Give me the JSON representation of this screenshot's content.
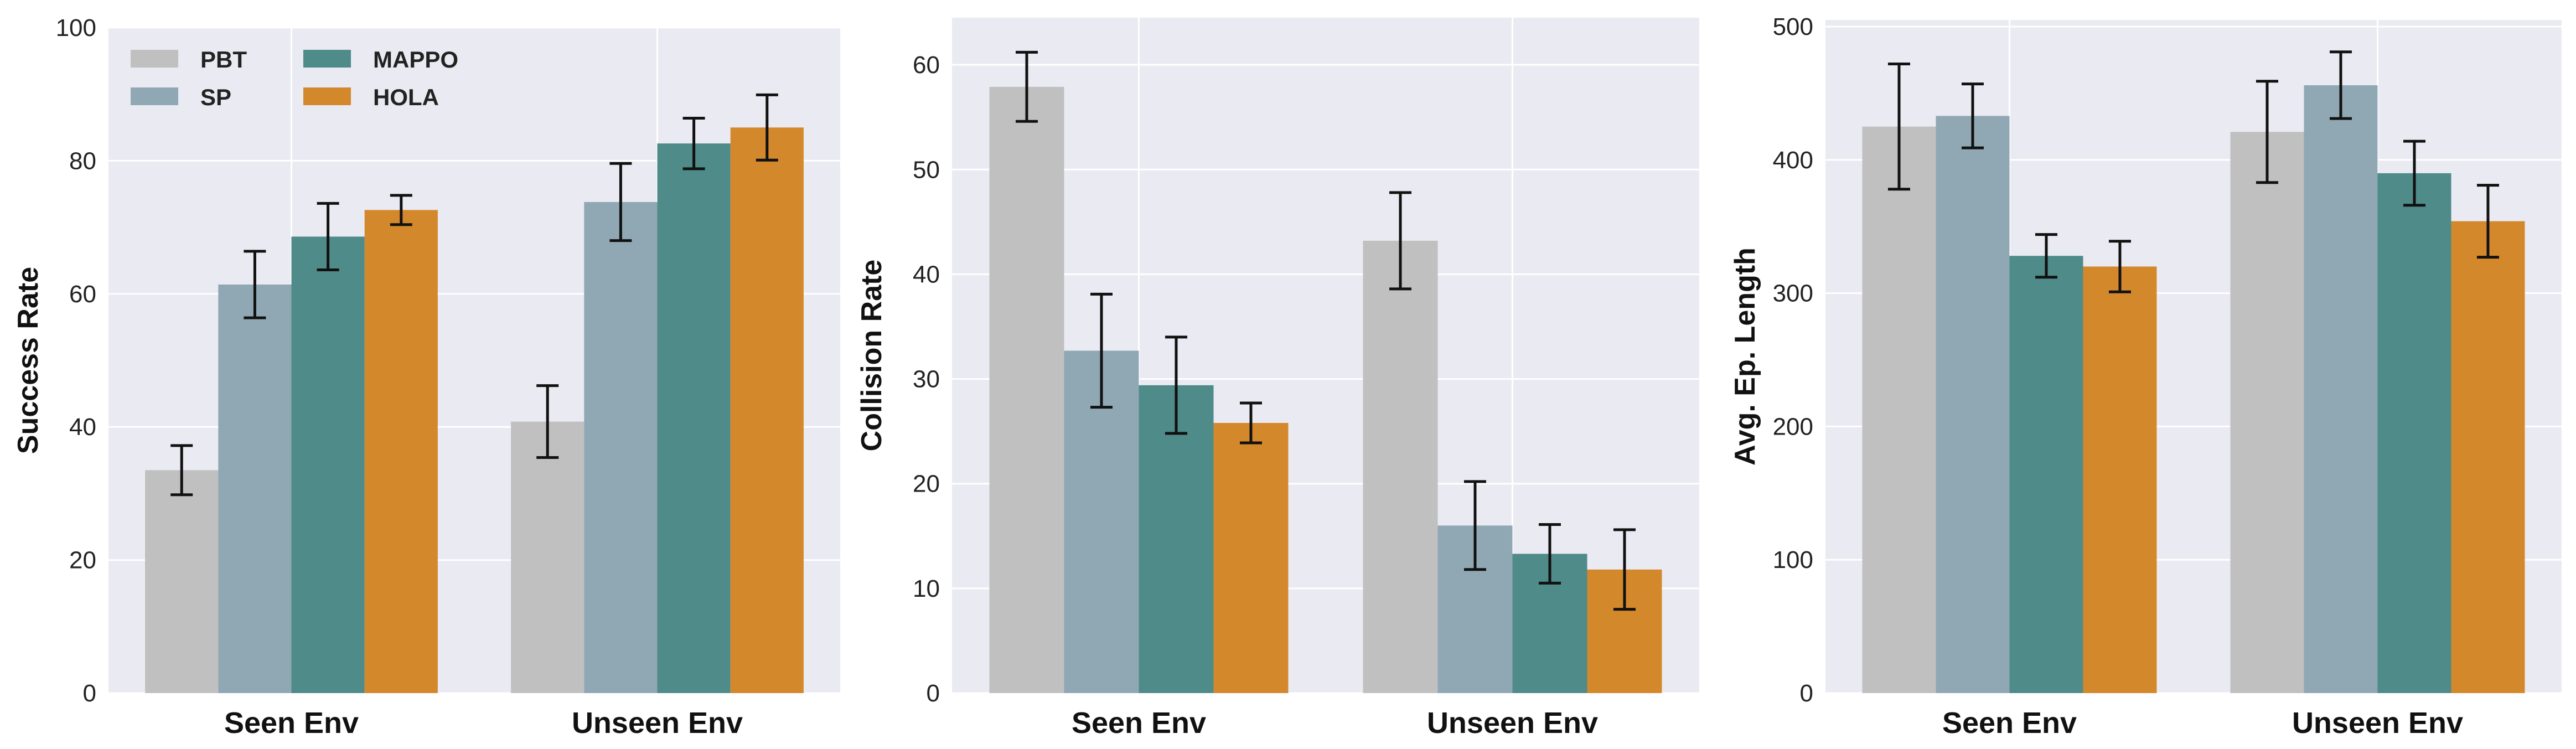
{
  "chart_data": [
    {
      "type": "bar",
      "ylabel": "Success Rate",
      "categories": [
        "Seen Env",
        "Unseen Env"
      ],
      "ylim": [
        0,
        100
      ],
      "yticks": [
        0,
        20,
        40,
        60,
        80,
        100
      ],
      "grid": true,
      "legend": "top-left",
      "series": [
        {
          "name": "PBT",
          "color": "#c0c0c0",
          "values": [
            33.5,
            40.8
          ],
          "errors": [
            3.7,
            5.4
          ]
        },
        {
          "name": "SP",
          "color": "#90a8b4",
          "values": [
            61.4,
            73.8
          ],
          "errors": [
            5.0,
            5.8
          ]
        },
        {
          "name": "MAPPO",
          "color": "#4e8b89",
          "values": [
            68.6,
            82.6
          ],
          "errors": [
            5.0,
            3.8
          ]
        },
        {
          "name": "HOLA",
          "color": "#d4882c",
          "values": [
            72.6,
            85.0
          ],
          "errors": [
            2.2,
            4.9
          ]
        }
      ]
    },
    {
      "type": "bar",
      "ylabel": "Collision Rate",
      "categories": [
        "Seen Env",
        "Unseen Env"
      ],
      "ylim": [
        0,
        64.5
      ],
      "yticks": [
        0,
        10,
        20,
        30,
        40,
        50,
        60
      ],
      "grid": true,
      "series": [
        {
          "name": "PBT",
          "color": "#c0c0c0",
          "values": [
            57.9,
            43.2
          ],
          "errors": [
            3.3,
            4.6
          ]
        },
        {
          "name": "SP",
          "color": "#90a8b4",
          "values": [
            32.7,
            16.0
          ],
          "errors": [
            5.4,
            4.2
          ]
        },
        {
          "name": "MAPPO",
          "color": "#4e8b89",
          "values": [
            29.4,
            13.3
          ],
          "errors": [
            4.6,
            2.8
          ]
        },
        {
          "name": "HOLA",
          "color": "#d4882c",
          "values": [
            25.8,
            11.8
          ],
          "errors": [
            1.9,
            3.8
          ]
        }
      ]
    },
    {
      "type": "bar",
      "ylabel": "Avg. Ep. Length",
      "categories": [
        "Seen Env",
        "Unseen Env"
      ],
      "ylim": [
        0,
        505
      ],
      "yticks": [
        0,
        100,
        200,
        300,
        400,
        500
      ],
      "grid": true,
      "series": [
        {
          "name": "PBT",
          "color": "#c0c0c0",
          "values": [
            425,
            421
          ],
          "errors": [
            47,
            38
          ]
        },
        {
          "name": "SP",
          "color": "#90a8b4",
          "values": [
            433,
            456
          ],
          "errors": [
            24,
            25
          ]
        },
        {
          "name": "MAPPO",
          "color": "#4e8b89",
          "values": [
            328,
            390
          ],
          "errors": [
            16,
            24
          ]
        },
        {
          "name": "HOLA",
          "color": "#d4882c",
          "values": [
            320,
            354
          ],
          "errors": [
            19,
            27
          ]
        }
      ]
    }
  ]
}
